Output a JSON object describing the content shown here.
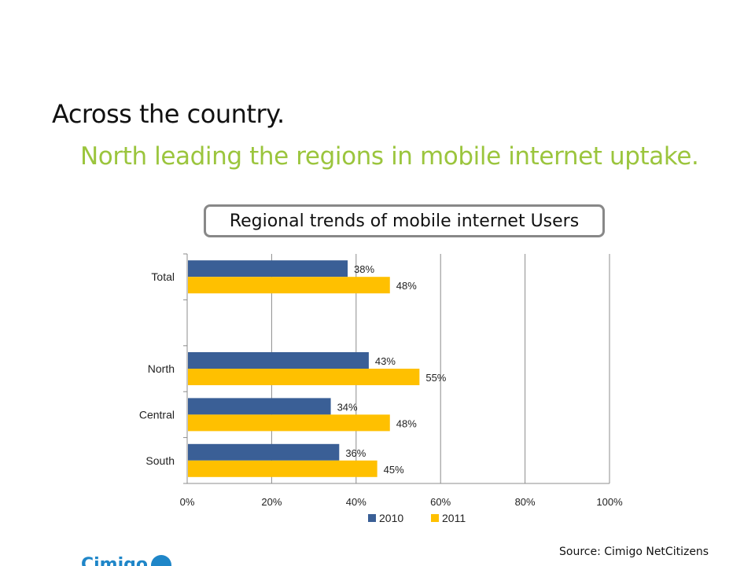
{
  "slide": {
    "heading": "Across the country.",
    "subheading": "North leading the regions in mobile internet uptake.",
    "source": "Source: Cimigo NetCitizens",
    "logo_text": "Cimigo"
  },
  "colors": {
    "accent_green": "#9BC53D",
    "series_2010": "#3A5F96",
    "series_2011": "#FFC000"
  },
  "chart_data": {
    "type": "bar",
    "orientation": "horizontal",
    "title": "Regional trends of mobile internet Users",
    "categories": [
      "Total",
      "",
      "North",
      "Central",
      "South"
    ],
    "series": [
      {
        "name": "2010",
        "values": [
          38,
          null,
          43,
          34,
          36
        ],
        "labels": [
          "38%",
          null,
          "43%",
          "34%",
          "36%"
        ]
      },
      {
        "name": "2011",
        "values": [
          48,
          null,
          55,
          48,
          45
        ],
        "labels": [
          "48%",
          null,
          "55%",
          "48%",
          "45%"
        ]
      }
    ],
    "xlim": [
      0,
      100
    ],
    "xticks": [
      "0%",
      "20%",
      "40%",
      "60%",
      "80%",
      "100%"
    ],
    "xlabel": "",
    "ylabel": "",
    "grid": true,
    "legend": "bottom"
  }
}
